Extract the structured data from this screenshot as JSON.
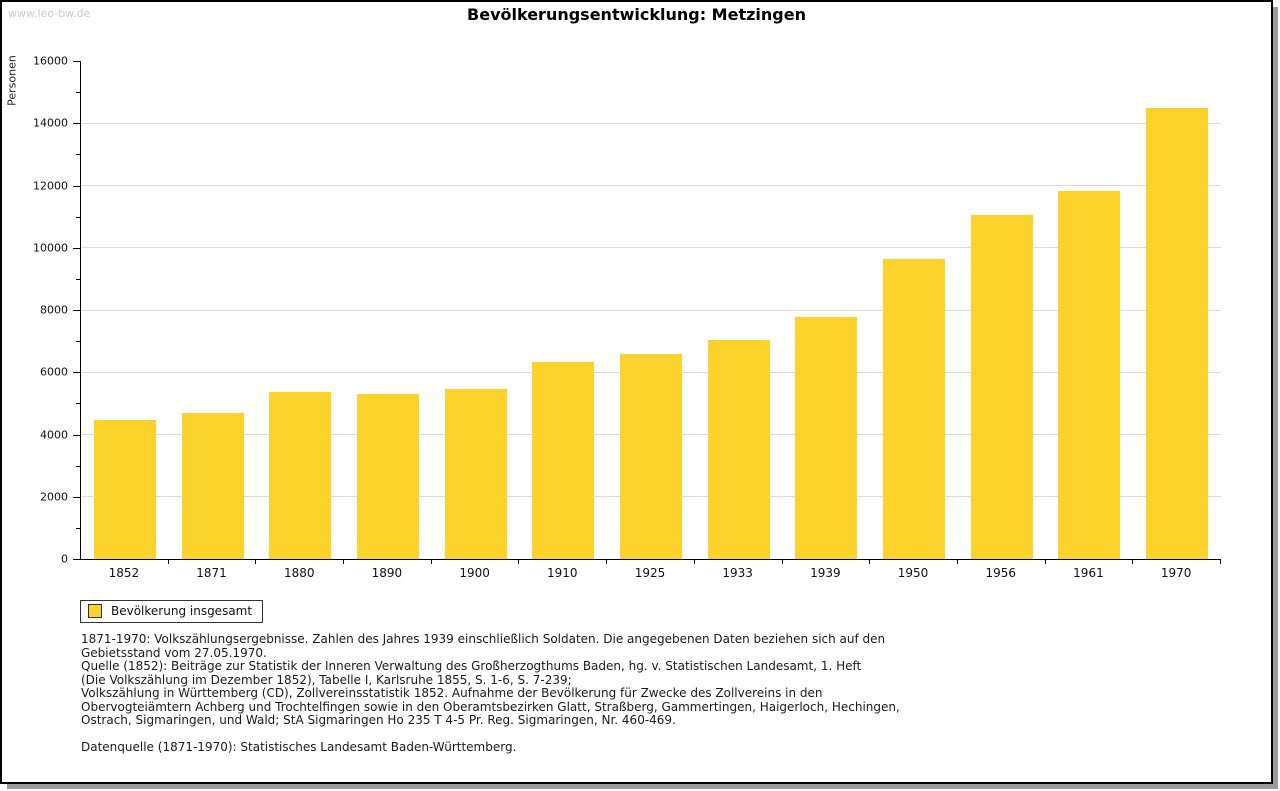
{
  "watermark": "www.leo-bw.de",
  "chart_data": {
    "type": "bar",
    "title": "Bevölkerungsentwicklung: Metzingen",
    "ylabel": "Personen",
    "xlabel": "",
    "categories": [
      "1852",
      "1871",
      "1880",
      "1890",
      "1900",
      "1910",
      "1925",
      "1933",
      "1939",
      "1950",
      "1956",
      "1961",
      "1970"
    ],
    "series": [
      {
        "name": "Bevölkerung insgesamt",
        "values": [
          4470,
          4700,
          5360,
          5310,
          5460,
          6330,
          6590,
          7040,
          7780,
          9650,
          11060,
          11830,
          14490
        ]
      }
    ],
    "ylim": [
      0,
      16000
    ],
    "yticks": [
      0,
      2000,
      4000,
      6000,
      8000,
      10000,
      12000,
      14000,
      16000
    ],
    "yminor_step": 1000,
    "grid": true,
    "legend_position": "bottom-left",
    "bar_color": "#FCD32D",
    "grid_color": "#DCDCDC"
  },
  "legend": {
    "label": "Bevölkerung insgesamt"
  },
  "notes": [
    "1871-1970: Volkszählungsergebnisse. Zahlen des Jahres 1939 einschließlich Soldaten. Die angegebenen Daten beziehen sich auf den",
    "Gebietsstand vom 27.05.1970.",
    "Quelle (1852): Beiträge zur Statistik der Inneren Verwaltung des Großherzogthums Baden, hg. v. Statistischen Landesamt, 1. Heft",
    "(Die Volkszählung im Dezember 1852), Tabelle I, Karlsruhe 1855, S. 1-6, S. 7-239;",
    "Volkszählung in Württemberg (CD), Zollvereinsstatistik 1852. Aufnahme der Bevölkerung für Zwecke des Zollvereins in den",
    "Obervogteiämtern Achberg und Trochtelfingen sowie in den Oberamtsbezirken Glatt, Straßberg, Gammertingen, Haigerloch, Hechingen,",
    "Ostrach, Sigmaringen, und Wald; StA Sigmaringen Ho 235 T 4-5 Pr. Reg. Sigmaringen, Nr. 460-469.",
    "",
    "Datenquelle (1871-1970): Statistisches Landesamt Baden-Württemberg."
  ]
}
